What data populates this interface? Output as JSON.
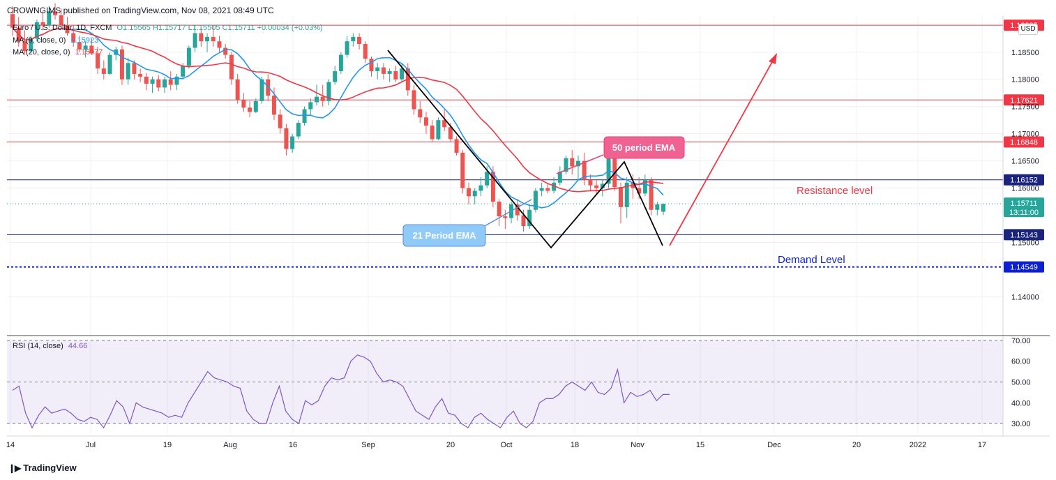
{
  "header": {
    "publisher": "CROWNGIMS published on TradingView.com, Nov 08, 2021 08:49 UTC"
  },
  "legend": {
    "symbol": "Euro / U.S. Dollar, 1D, FXCM",
    "ohlc": "O1.15565 H1.15717 L1.15505 C1.15711 +0.00034 (+0.03%)",
    "ma9_label": "MA (9, close, 0)",
    "ma9_value": "1.15923",
    "ma20_label": "MA (20, close, 0)",
    "ma20_value": "1.15977",
    "rsi_label": "RSI (14, close)",
    "rsi_value": "44.66"
  },
  "currency_button": "USD",
  "brand": "TradingView",
  "colors": {
    "up": "#26a69a",
    "down": "#ef5350",
    "ma_fast": "#2196f3",
    "ma_slow": "#f23645",
    "rsi": "#7e57c2",
    "resistance": "#f23645",
    "demand": "#0d1fd6",
    "navy_line": "#1a237e"
  },
  "chart_data": {
    "type": "candlestick",
    "price_axis": {
      "ticks": [
        "1.18500",
        "1.18000",
        "1.17500",
        "1.17000",
        "1.16500",
        "1.16000",
        "1.15000",
        "1.14000"
      ],
      "range": [
        1.133,
        1.191
      ]
    },
    "time_axis": {
      "labels": [
        "14",
        "Jul",
        "19",
        "Aug",
        "16",
        "Sep",
        "20",
        "Oct",
        "18",
        "Nov",
        "15",
        "Dec",
        "20",
        "2022",
        "17"
      ]
    },
    "horizontal_levels": [
      {
        "price": 1.18995,
        "label": "1.18995",
        "color": "#f23645",
        "style": "solid"
      },
      {
        "price": 1.17621,
        "label": "1.17621",
        "color": "#f23645",
        "style": "solid"
      },
      {
        "price": 1.16848,
        "label": "1.16848",
        "color": "#f23645",
        "style": "solid"
      },
      {
        "price": 1.16152,
        "label": "1.16152",
        "color": "#1a237e",
        "style": "solid"
      },
      {
        "price": 1.15143,
        "label": "1.15143",
        "color": "#1a237e",
        "style": "solid"
      },
      {
        "price": 1.14549,
        "label": "1.14549",
        "color": "#0d1fd6",
        "style": "dotted"
      }
    ],
    "last_price": {
      "price": 1.15711,
      "label": "1.15711",
      "countdown": "13:11:00"
    },
    "annotations": [
      {
        "text": "50 period EMA",
        "kind": "callout-pink"
      },
      {
        "text": "21 Period EMA",
        "kind": "callout-blue"
      },
      {
        "text": "Resistance level",
        "kind": "text-red"
      },
      {
        "text": "Demand Level",
        "kind": "text-blue"
      }
    ],
    "candles": [
      [
        1.192,
        1.1935,
        1.188,
        1.1895
      ],
      [
        1.1895,
        1.1915,
        1.186,
        1.187
      ],
      [
        1.187,
        1.189,
        1.1845,
        1.1852
      ],
      [
        1.1852,
        1.188,
        1.1848,
        1.1875
      ],
      [
        1.1875,
        1.191,
        1.187,
        1.1905
      ],
      [
        1.1905,
        1.1925,
        1.189,
        1.19
      ],
      [
        1.19,
        1.1935,
        1.1895,
        1.1925
      ],
      [
        1.1925,
        1.194,
        1.191,
        1.1918
      ],
      [
        1.1918,
        1.193,
        1.1895,
        1.19
      ],
      [
        1.19,
        1.1915,
        1.188,
        1.1885
      ],
      [
        1.1885,
        1.19,
        1.186,
        1.1868
      ],
      [
        1.1868,
        1.188,
        1.185,
        1.1855
      ],
      [
        1.1855,
        1.187,
        1.184,
        1.1862
      ],
      [
        1.1862,
        1.1875,
        1.1845,
        1.1848
      ],
      [
        1.1848,
        1.186,
        1.181,
        1.182
      ],
      [
        1.182,
        1.1835,
        1.18,
        1.181
      ],
      [
        1.181,
        1.185,
        1.1808,
        1.1845
      ],
      [
        1.1845,
        1.186,
        1.1835,
        1.1855
      ],
      [
        1.1855,
        1.1862,
        1.179,
        1.18
      ],
      [
        1.18,
        1.184,
        1.179,
        1.183
      ],
      [
        1.183,
        1.1835,
        1.18,
        1.181
      ],
      [
        1.181,
        1.182,
        1.1795,
        1.1805
      ],
      [
        1.1805,
        1.1812,
        1.178,
        1.1792
      ],
      [
        1.1792,
        1.1805,
        1.1775,
        1.18
      ],
      [
        1.18,
        1.1808,
        1.1778,
        1.1785
      ],
      [
        1.1785,
        1.1805,
        1.1775,
        1.18
      ],
      [
        1.18,
        1.1815,
        1.178,
        1.179
      ],
      [
        1.179,
        1.181,
        1.178,
        1.1805
      ],
      [
        1.1805,
        1.183,
        1.18,
        1.1825
      ],
      [
        1.1825,
        1.1862,
        1.182,
        1.1858
      ],
      [
        1.1858,
        1.19,
        1.185,
        1.1885
      ],
      [
        1.1885,
        1.1895,
        1.186,
        1.187
      ],
      [
        1.187,
        1.1885,
        1.185,
        1.1878
      ],
      [
        1.1878,
        1.19,
        1.186,
        1.187
      ],
      [
        1.187,
        1.188,
        1.185,
        1.1858
      ],
      [
        1.1858,
        1.1865,
        1.1838,
        1.1845
      ],
      [
        1.1845,
        1.185,
        1.179,
        1.18
      ],
      [
        1.18,
        1.181,
        1.1755,
        1.1762
      ],
      [
        1.1762,
        1.1775,
        1.174,
        1.1748
      ],
      [
        1.1748,
        1.176,
        1.173,
        1.174
      ],
      [
        1.174,
        1.1765,
        1.1738,
        1.176
      ],
      [
        1.176,
        1.1805,
        1.1755,
        1.18
      ],
      [
        1.18,
        1.181,
        1.176,
        1.177
      ],
      [
        1.177,
        1.1785,
        1.1725,
        1.1735
      ],
      [
        1.1735,
        1.1745,
        1.17,
        1.171
      ],
      [
        1.171,
        1.1718,
        1.166,
        1.1672
      ],
      [
        1.1672,
        1.17,
        1.1665,
        1.1695
      ],
      [
        1.1695,
        1.1725,
        1.169,
        1.172
      ],
      [
        1.172,
        1.175,
        1.1715,
        1.1745
      ],
      [
        1.1745,
        1.1765,
        1.1735,
        1.1758
      ],
      [
        1.1758,
        1.179,
        1.1752,
        1.1768
      ],
      [
        1.1768,
        1.179,
        1.175,
        1.176
      ],
      [
        1.176,
        1.18,
        1.1752,
        1.1795
      ],
      [
        1.1795,
        1.1825,
        1.179,
        1.1815
      ],
      [
        1.1815,
        1.185,
        1.181,
        1.1845
      ],
      [
        1.1845,
        1.188,
        1.184,
        1.187
      ],
      [
        1.187,
        1.1885,
        1.186,
        1.1878
      ],
      [
        1.1878,
        1.1885,
        1.1855,
        1.1865
      ],
      [
        1.1865,
        1.187,
        1.183,
        1.1838
      ],
      [
        1.1838,
        1.1842,
        1.1805,
        1.1815
      ],
      [
        1.1815,
        1.183,
        1.18,
        1.1822
      ],
      [
        1.1822,
        1.183,
        1.18,
        1.181
      ],
      [
        1.181,
        1.182,
        1.1795,
        1.1815
      ],
      [
        1.1815,
        1.1825,
        1.1795,
        1.18
      ],
      [
        1.18,
        1.183,
        1.1795,
        1.182
      ],
      [
        1.182,
        1.183,
        1.177,
        1.178
      ],
      [
        1.178,
        1.179,
        1.1735,
        1.1745
      ],
      [
        1.1745,
        1.176,
        1.172,
        1.173
      ],
      [
        1.173,
        1.174,
        1.17,
        1.1715
      ],
      [
        1.1715,
        1.1725,
        1.1685,
        1.169
      ],
      [
        1.169,
        1.173,
        1.1688,
        1.1725
      ],
      [
        1.1725,
        1.1745,
        1.1705,
        1.1712
      ],
      [
        1.1712,
        1.172,
        1.1685,
        1.169
      ],
      [
        1.169,
        1.1695,
        1.166,
        1.1665
      ],
      [
        1.1665,
        1.167,
        1.159,
        1.16
      ],
      [
        1.16,
        1.161,
        1.157,
        1.1585
      ],
      [
        1.1585,
        1.16,
        1.157,
        1.1595
      ],
      [
        1.1595,
        1.162,
        1.1585,
        1.1605
      ],
      [
        1.1605,
        1.164,
        1.16,
        1.163
      ],
      [
        1.163,
        1.164,
        1.1565,
        1.1575
      ],
      [
        1.1575,
        1.158,
        1.153,
        1.1548
      ],
      [
        1.1548,
        1.156,
        1.1525,
        1.1545
      ],
      [
        1.1545,
        1.1575,
        1.1535,
        1.157
      ],
      [
        1.157,
        1.158,
        1.154,
        1.155
      ],
      [
        1.155,
        1.156,
        1.152,
        1.153
      ],
      [
        1.153,
        1.157,
        1.1525,
        1.156
      ],
      [
        1.156,
        1.16,
        1.1555,
        1.1595
      ],
      [
        1.1595,
        1.161,
        1.1585,
        1.16
      ],
      [
        1.16,
        1.161,
        1.159,
        1.1595
      ],
      [
        1.1595,
        1.162,
        1.159,
        1.161
      ],
      [
        1.161,
        1.164,
        1.1605,
        1.163
      ],
      [
        1.163,
        1.166,
        1.1625,
        1.1655
      ],
      [
        1.1655,
        1.167,
        1.1625,
        1.164
      ],
      [
        1.164,
        1.166,
        1.1615,
        1.165
      ],
      [
        1.165,
        1.1665,
        1.1605,
        1.1615
      ],
      [
        1.1615,
        1.1625,
        1.1595,
        1.1605
      ],
      [
        1.1605,
        1.1615,
        1.159,
        1.16
      ],
      [
        1.16,
        1.1615,
        1.1585,
        1.1608
      ],
      [
        1.1608,
        1.169,
        1.16,
        1.168
      ],
      [
        1.168,
        1.169,
        1.1595,
        1.1602
      ],
      [
        1.1602,
        1.161,
        1.1535,
        1.1565
      ],
      [
        1.1565,
        1.162,
        1.1545,
        1.161
      ],
      [
        1.161,
        1.1625,
        1.158,
        1.16
      ],
      [
        1.16,
        1.162,
        1.158,
        1.159
      ],
      [
        1.159,
        1.1625,
        1.1585,
        1.1615
      ],
      [
        1.1615,
        1.162,
        1.155,
        1.156
      ],
      [
        1.156,
        1.1575,
        1.155,
        1.157
      ],
      [
        1.15565,
        1.15717,
        1.15505,
        1.15711
      ]
    ],
    "rsi": [
      46,
      48,
      35,
      28,
      34,
      38,
      35,
      36,
      37,
      35,
      32,
      31,
      33,
      32,
      28,
      34,
      41,
      38,
      30,
      40,
      38,
      37,
      36,
      35,
      33,
      34,
      33,
      40,
      45,
      50,
      55,
      52,
      51,
      50,
      48,
      47,
      36,
      32,
      30,
      30,
      40,
      48,
      36,
      32,
      30,
      41,
      39,
      41,
      48,
      52,
      51,
      52,
      60,
      63,
      62,
      60,
      54,
      50,
      51,
      50,
      48,
      42,
      36,
      34,
      32,
      38,
      42,
      35,
      34,
      30,
      28,
      33,
      35,
      32,
      30,
      28,
      33,
      36,
      30,
      28,
      31,
      40,
      42,
      42,
      44,
      48,
      50,
      48,
      46,
      50,
      45,
      44,
      47,
      56,
      40,
      45,
      43,
      44,
      46,
      41,
      44,
      44
    ],
    "rsi_axis": {
      "ticks": [
        "70.00",
        "60.00",
        "50.00",
        "40.00",
        "30.00"
      ],
      "range": [
        25,
        72
      ]
    }
  }
}
